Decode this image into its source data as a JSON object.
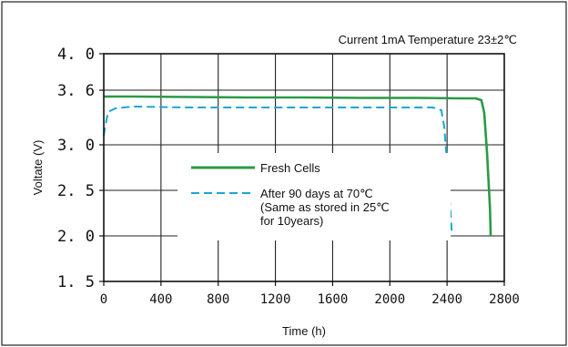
{
  "chart_data": {
    "type": "line",
    "title": "",
    "annotation": "Current 1mA  Temperature 23±2℃",
    "xlabel": "Time (h)",
    "ylabel": "Voltate (V)",
    "xlim": [
      0,
      2800
    ],
    "ylim": [
      1.5,
      4.0
    ],
    "xticks": [
      0,
      400,
      800,
      1200,
      1600,
      2000,
      2400,
      2800
    ],
    "yticks": [
      1.5,
      2.0,
      2.5,
      3.0,
      3.6,
      4.0
    ],
    "ytick_labels": [
      "1. 5",
      "2. 0",
      "2. 5",
      "3. 0",
      "3. 6",
      "4. 0"
    ],
    "grid": true,
    "legend_position": "center",
    "series": [
      {
        "name": "Fresh Cells",
        "color": "#2a9a45",
        "style": "solid",
        "x": [
          0,
          200,
          600,
          1000,
          1400,
          1800,
          2200,
          2500,
          2600,
          2640,
          2660,
          2680,
          2700,
          2705
        ],
        "y": [
          3.53,
          3.53,
          3.525,
          3.52,
          3.52,
          3.515,
          3.515,
          3.51,
          3.51,
          3.49,
          3.35,
          2.9,
          2.3,
          2.0
        ]
      },
      {
        "name": "After 90 days at 70℃",
        "name_line2": "(Same as stored in 25℃",
        "name_line3": "for 10years)",
        "color": "#1aa6d6",
        "style": "dashed",
        "x": [
          0,
          10,
          30,
          80,
          200,
          600,
          1000,
          1400,
          1800,
          2200,
          2300,
          2360,
          2380,
          2400,
          2420,
          2435
        ],
        "y": [
          3.1,
          3.2,
          3.36,
          3.4,
          3.42,
          3.41,
          3.41,
          3.41,
          3.41,
          3.41,
          3.41,
          3.38,
          3.2,
          2.8,
          2.35,
          2.0
        ]
      }
    ]
  }
}
